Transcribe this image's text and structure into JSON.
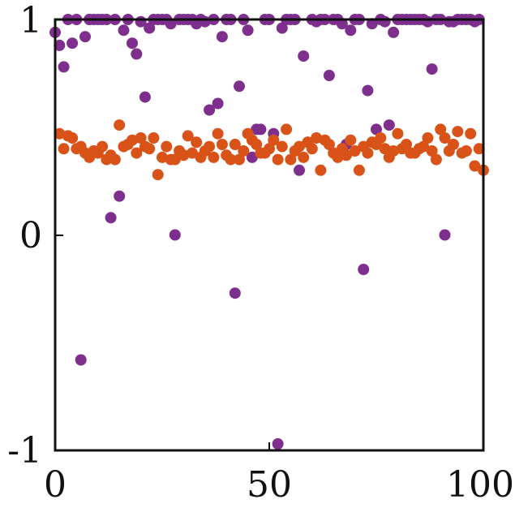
{
  "chart_data": {
    "type": "scatter",
    "xlim": [
      0,
      100
    ],
    "ylim": [
      -1,
      1
    ],
    "xticks": [
      "0",
      "50",
      "100"
    ],
    "yticks": [
      "-1",
      "0",
      "1"
    ],
    "grid": false,
    "series": [
      {
        "color": "#7E2F8E",
        "points": [
          [
            0,
            0.94
          ],
          [
            1,
            0.88
          ],
          [
            2,
            0.78
          ],
          [
            3,
            1.0
          ],
          [
            4,
            0.89
          ],
          [
            5,
            1.0
          ],
          [
            6,
            -0.58
          ],
          [
            7,
            0.92
          ],
          [
            8,
            1.0
          ],
          [
            9,
            1.0
          ],
          [
            10,
            1.0
          ],
          [
            11,
            1.0
          ],
          [
            12,
            1.0
          ],
          [
            13,
            0.08
          ],
          [
            14,
            1.0
          ],
          [
            15,
            0.18
          ],
          [
            16,
            0.95
          ],
          [
            17,
            1.0
          ],
          [
            18,
            0.89
          ],
          [
            19,
            0.84
          ],
          [
            20,
            0.99
          ],
          [
            21,
            0.64
          ],
          [
            22,
            0.96
          ],
          [
            23,
            1.0
          ],
          [
            24,
            1.0
          ],
          [
            25,
            1.0
          ],
          [
            26,
            1.0
          ],
          [
            27,
            0.98
          ],
          [
            28,
            0.0
          ],
          [
            29,
            1.0
          ],
          [
            30,
            1.0
          ],
          [
            31,
            1.0
          ],
          [
            32,
            1.0
          ],
          [
            33,
            0.98
          ],
          [
            34,
            1.0
          ],
          [
            35,
            0.99
          ],
          [
            36,
            0.58
          ],
          [
            37,
            1.0
          ],
          [
            38,
            0.61
          ],
          [
            39,
            0.92
          ],
          [
            40,
            1.0
          ],
          [
            41,
            1.0
          ],
          [
            42,
            -0.27
          ],
          [
            43,
            0.69
          ],
          [
            44,
            1.0
          ],
          [
            45,
            0.95
          ],
          [
            46,
            0.36
          ],
          [
            47,
            0.49
          ],
          [
            48,
            0.49
          ],
          [
            49,
            1.0
          ],
          [
            50,
            1.0
          ],
          [
            51,
            0.47
          ],
          [
            52,
            -0.97
          ],
          [
            53,
            0.96
          ],
          [
            54,
            1.0
          ],
          [
            55,
            1.0
          ],
          [
            56,
            1.0
          ],
          [
            57,
            0.3
          ],
          [
            58,
            0.83
          ],
          [
            59,
            0.43
          ],
          [
            60,
            1.0
          ],
          [
            61,
            0.99
          ],
          [
            62,
            1.0
          ],
          [
            63,
            1.0
          ],
          [
            64,
            0.74
          ],
          [
            65,
            1.0
          ],
          [
            66,
            1.0
          ],
          [
            67,
            0.98
          ],
          [
            68,
            0.42
          ],
          [
            69,
            0.95
          ],
          [
            70,
            1.0
          ],
          [
            71,
            1.0
          ],
          [
            72,
            -0.16
          ],
          [
            73,
            0.67
          ],
          [
            74,
            0.98
          ],
          [
            75,
            0.49
          ],
          [
            76,
            1.0
          ],
          [
            77,
            0.99
          ],
          [
            78,
            0.51
          ],
          [
            79,
            0.94
          ],
          [
            80,
            1.0
          ],
          [
            81,
            1.0
          ],
          [
            82,
            1.0
          ],
          [
            83,
            1.0
          ],
          [
            84,
            1.0
          ],
          [
            85,
            1.0
          ],
          [
            86,
            1.0
          ],
          [
            87,
            0.99
          ],
          [
            88,
            0.77
          ],
          [
            89,
            1.0
          ],
          [
            90,
            1.0
          ],
          [
            91,
            0.0
          ],
          [
            92,
            0.99
          ],
          [
            93,
            0.99
          ],
          [
            94,
            1.0
          ],
          [
            95,
            1.0
          ],
          [
            96,
            1.0
          ],
          [
            97,
            1.0
          ],
          [
            98,
            0.99
          ],
          [
            99,
            1.0
          ]
        ]
      },
      {
        "color": "#D95319",
        "points": [
          [
            1,
            0.47
          ],
          [
            2,
            0.4
          ],
          [
            3,
            0.46
          ],
          [
            4,
            0.45
          ],
          [
            5,
            0.4
          ],
          [
            6,
            0.41
          ],
          [
            7,
            0.38
          ],
          [
            8,
            0.36
          ],
          [
            9,
            0.39
          ],
          [
            10,
            0.38
          ],
          [
            11,
            0.41
          ],
          [
            12,
            0.35
          ],
          [
            13,
            0.37
          ],
          [
            14,
            0.35
          ],
          [
            15,
            0.51
          ],
          [
            16,
            0.41
          ],
          [
            17,
            0.42
          ],
          [
            18,
            0.44
          ],
          [
            19,
            0.38
          ],
          [
            20,
            0.45
          ],
          [
            21,
            0.41
          ],
          [
            22,
            0.4
          ],
          [
            23,
            0.45
          ],
          [
            24,
            0.28
          ],
          [
            25,
            0.36
          ],
          [
            26,
            0.41
          ],
          [
            27,
            0.35
          ],
          [
            28,
            0.35
          ],
          [
            29,
            0.39
          ],
          [
            30,
            0.37
          ],
          [
            31,
            0.46
          ],
          [
            32,
            0.38
          ],
          [
            33,
            0.43
          ],
          [
            34,
            0.36
          ],
          [
            35,
            0.39
          ],
          [
            36,
            0.41
          ],
          [
            37,
            0.36
          ],
          [
            38,
            0.47
          ],
          [
            39,
            0.42
          ],
          [
            40,
            0.37
          ],
          [
            41,
            0.35
          ],
          [
            42,
            0.42
          ],
          [
            43,
            0.35
          ],
          [
            44,
            0.39
          ],
          [
            45,
            0.47
          ],
          [
            46,
            0.44
          ],
          [
            47,
            0.42
          ],
          [
            48,
            0.38
          ],
          [
            49,
            0.38
          ],
          [
            50,
            0.4
          ],
          [
            51,
            0.44
          ],
          [
            52,
            0.35
          ],
          [
            53,
            0.41
          ],
          [
            54,
            0.49
          ],
          [
            55,
            0.35
          ],
          [
            56,
            0.39
          ],
          [
            57,
            0.41
          ],
          [
            58,
            0.36
          ],
          [
            59,
            0.43
          ],
          [
            60,
            0.4
          ],
          [
            61,
            0.45
          ],
          [
            62,
            0.3
          ],
          [
            63,
            0.44
          ],
          [
            64,
            0.42
          ],
          [
            65,
            0.38
          ],
          [
            66,
            0.36
          ],
          [
            67,
            0.4
          ],
          [
            68,
            0.37
          ],
          [
            69,
            0.44
          ],
          [
            70,
            0.39
          ],
          [
            71,
            0.3
          ],
          [
            72,
            0.41
          ],
          [
            73,
            0.38
          ],
          [
            74,
            0.43
          ],
          [
            75,
            0.42
          ],
          [
            76,
            0.45
          ],
          [
            77,
            0.4
          ],
          [
            78,
            0.36
          ],
          [
            79,
            0.39
          ],
          [
            80,
            0.47
          ],
          [
            81,
            0.4
          ],
          [
            82,
            0.42
          ],
          [
            83,
            0.38
          ],
          [
            84,
            0.38
          ],
          [
            85,
            0.4
          ],
          [
            86,
            0.41
          ],
          [
            87,
            0.45
          ],
          [
            88,
            0.39
          ],
          [
            89,
            0.35
          ],
          [
            90,
            0.49
          ],
          [
            91,
            0.45
          ],
          [
            92,
            0.39
          ],
          [
            93,
            0.42
          ],
          [
            94,
            0.48
          ],
          [
            95,
            0.38
          ],
          [
            96,
            0.39
          ],
          [
            97,
            0.47
          ],
          [
            98,
            0.32
          ],
          [
            99,
            0.4
          ],
          [
            100,
            0.3
          ]
        ]
      }
    ]
  }
}
